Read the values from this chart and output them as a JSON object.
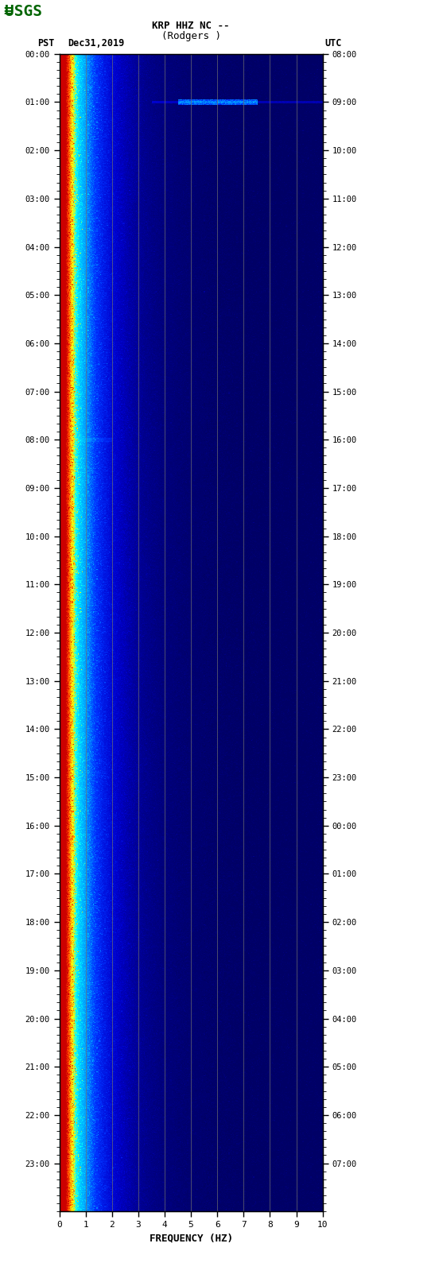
{
  "title_line1": "KRP HHZ NC --",
  "title_line2": "(Rodgers )",
  "left_label": "PST",
  "right_label": "UTC",
  "date_label": "Dec31,2019",
  "xlabel": "FREQUENCY (HZ)",
  "freq_min": 0,
  "freq_max": 10,
  "pst_ticks": [
    "00:00",
    "01:00",
    "02:00",
    "03:00",
    "04:00",
    "05:00",
    "06:00",
    "07:00",
    "08:00",
    "09:00",
    "10:00",
    "11:00",
    "12:00",
    "13:00",
    "14:00",
    "15:00",
    "16:00",
    "17:00",
    "18:00",
    "19:00",
    "20:00",
    "21:00",
    "22:00",
    "23:00"
  ],
  "utc_ticks": [
    "08:00",
    "09:00",
    "10:00",
    "11:00",
    "12:00",
    "13:00",
    "14:00",
    "15:00",
    "16:00",
    "17:00",
    "18:00",
    "19:00",
    "20:00",
    "21:00",
    "22:00",
    "23:00",
    "00:00",
    "01:00",
    "02:00",
    "03:00",
    "04:00",
    "05:00",
    "06:00",
    "07:00"
  ],
  "freq_ticks": [
    0,
    1,
    2,
    3,
    4,
    5,
    6,
    7,
    8,
    9,
    10
  ],
  "grid_color": "#808080",
  "fig_bg": "#FFFFFF",
  "logo_color": "#006400",
  "cmap_colors": [
    [
      0.0,
      "#000066"
    ],
    [
      0.05,
      "#0000CC"
    ],
    [
      0.12,
      "#0033FF"
    ],
    [
      0.2,
      "#0099FF"
    ],
    [
      0.3,
      "#00CCFF"
    ],
    [
      0.4,
      "#00FFFF"
    ],
    [
      0.52,
      "#FFFF00"
    ],
    [
      0.65,
      "#FF8800"
    ],
    [
      0.8,
      "#FF3300"
    ],
    [
      1.0,
      "#CC0000"
    ]
  ]
}
